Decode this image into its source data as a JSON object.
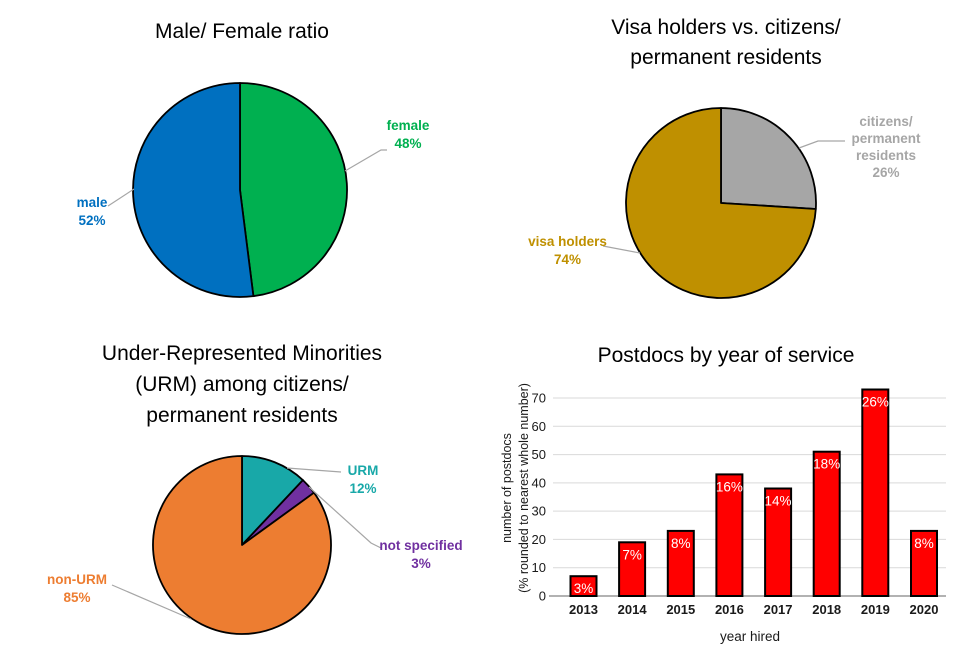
{
  "figure_background": "#FFFFFF",
  "leader_line_color": "#A6A6A6",
  "pie_outline_color": "#000000",
  "chart_data": [
    {
      "id": "male-female-ratio",
      "type": "pie",
      "title": "Male/ Female ratio",
      "slices": [
        {
          "label": "female",
          "pct": "48%",
          "value": 48,
          "color": "#00B050"
        },
        {
          "label": "male",
          "pct": "52%",
          "value": 52,
          "color": "#0070C0"
        }
      ]
    },
    {
      "id": "visa-vs-citizens",
      "type": "pie",
      "title": "Visa holders vs. citizens/\npermanent residents",
      "slices": [
        {
          "label": "citizens/\npermanent\nresidents",
          "pct": "26%",
          "value": 26,
          "color": "#A6A6A6"
        },
        {
          "label": "visa holders",
          "pct": "74%",
          "value": 74,
          "color": "#BF9000"
        }
      ]
    },
    {
      "id": "urm-among-citizens",
      "type": "pie",
      "title": "Under-Represented Minorities\n(URM) among citizens/\npermanent residents",
      "slices": [
        {
          "label": "URM",
          "pct": "12%",
          "value": 12,
          "color": "#18A8A8"
        },
        {
          "label": "not specified",
          "pct": "3%",
          "value": 3,
          "color": "#7030A0"
        },
        {
          "label": "non-URM",
          "pct": "85%",
          "value": 85,
          "color": "#ED7D31"
        }
      ]
    },
    {
      "id": "postdocs-by-year",
      "type": "bar",
      "title": "Postdocs by year of service",
      "xlabel": "year hired",
      "ylabel_lines": [
        "number of postdocs",
        "(% rounded to nearest whole number)"
      ],
      "categories": [
        "2013",
        "2014",
        "2015",
        "2016",
        "2017",
        "2018",
        "2019",
        "2020"
      ],
      "values": [
        7,
        19,
        23,
        43,
        38,
        51,
        73,
        23
      ],
      "bar_labels": [
        "3%",
        "7%",
        "8%",
        "16%",
        "14%",
        "18%",
        "26%",
        "8%"
      ],
      "yticks": [
        0,
        10,
        20,
        30,
        40,
        50,
        60,
        70
      ],
      "ylim": [
        0,
        75
      ],
      "grid": true,
      "legend": false,
      "bar_color": "#FF0000",
      "bar_border_color": "#000000",
      "bar_label_color": "#FFFFFF",
      "gridline_color": "#D9D9D9",
      "axis_color": "#999999",
      "text_color": "#1A1A1A"
    }
  ]
}
